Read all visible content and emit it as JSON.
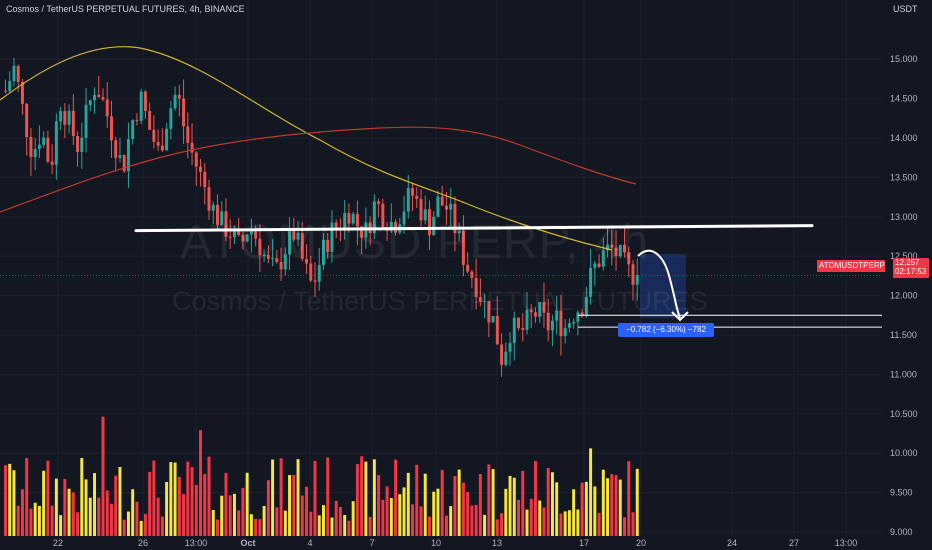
{
  "header": {
    "title": "Cosmos / TetherUS PERPETUAL FUTURES, 4h, BINANCE",
    "currency": "USDT"
  },
  "watermark": {
    "symbol": "ATOMUSD PERP, 4h",
    "name": "Cosmos / TetherUS PERPETUAL FUTURES"
  },
  "price_label": {
    "ticker": "ATOMUSDTPERP",
    "price": "12.257",
    "countdown": "02:17:53"
  },
  "measure_label": "−0.782 (−6.30%) −782",
  "colors": {
    "background": "#131722",
    "up": "#26a69a",
    "down": "#ef5350",
    "volume_up": "#f5e642",
    "volume_down": "#f23645",
    "ma_fast": "#d4b62d",
    "ma_slow": "#c0392b",
    "annotation": "#ffffff",
    "measure": "#2962ff"
  },
  "chart_data": {
    "type": "candlestick",
    "timeframe": "4h",
    "y_axis": {
      "ticks": [
        "15.000",
        "14.500",
        "14.000",
        "13.500",
        "13.000",
        "12.500",
        "12.000",
        "11.500",
        "11.000",
        "10.500",
        "10.000",
        "9.500",
        "9.000"
      ],
      "range": [
        8.95,
        15.75
      ]
    },
    "x_axis": {
      "ticks": [
        "22",
        "26",
        "13:00",
        "Oct",
        "4",
        "7",
        "10",
        "13",
        "17",
        "20",
        "24",
        "27",
        "13:00"
      ]
    },
    "close_series": [
      14.6,
      14.9,
      14.3,
      13.8,
      14.1,
      13.6,
      14.5,
      14.2,
      13.9,
      14.3,
      14.7,
      14.4,
      14.0,
      13.6,
      14.2,
      14.5,
      14.1,
      13.8,
      14.3,
      14.6,
      14.0,
      13.7,
      13.4,
      13.1,
      12.9,
      12.8,
      12.6,
      12.9,
      12.7,
      12.4,
      12.3,
      12.6,
      12.8,
      12.4,
      12.1,
      12.5,
      12.8,
      12.9,
      13.1,
      12.9,
      12.8,
      13.2,
      13.0,
      12.9,
      13.1,
      13.3,
      13.1,
      12.9,
      13.2,
      13.1,
      12.8,
      12.4,
      12.2,
      11.9,
      11.7,
      11.2,
      11.6,
      11.5,
      11.7,
      11.8,
      11.6,
      11.7,
      11.6,
      11.8,
      11.9,
      12.3,
      12.5,
      12.6,
      12.5,
      12.3,
      12.26
    ],
    "annotations": {
      "resistance_level": 12.85,
      "target_levels": [
        11.75,
        11.6
      ],
      "measure_change": -0.782
    }
  }
}
